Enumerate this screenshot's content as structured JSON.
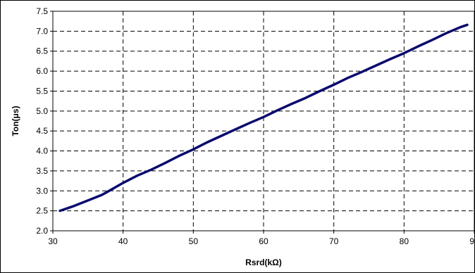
{
  "chart_data": {
    "type": "line",
    "title": "",
    "xlabel": "Rsrd(kΩ)",
    "ylabel": "Ton(μs)",
    "xlim": [
      30,
      90
    ],
    "ylim": [
      2.0,
      7.5
    ],
    "x_ticks": [
      "30",
      "40",
      "50",
      "60",
      "70",
      "80",
      "90"
    ],
    "y_ticks": [
      "2.0",
      "2.5",
      "3.0",
      "3.5",
      "4.0",
      "4.5",
      "5.0",
      "5.5",
      "6.0",
      "6.5",
      "7.0",
      "7.5"
    ],
    "grid": "dashed",
    "legend": "none",
    "series": [
      {
        "color": "#0a0a6e",
        "x": [
          31,
          33,
          35,
          37,
          38,
          40,
          42,
          44,
          46,
          48,
          50,
          52,
          54,
          56,
          58,
          60,
          62,
          64,
          66,
          68,
          70,
          72,
          74,
          76,
          78,
          80,
          82,
          84,
          86,
          88,
          89
        ],
        "y": [
          2.5,
          2.62,
          2.76,
          2.9,
          3.0,
          3.2,
          3.38,
          3.53,
          3.7,
          3.88,
          4.04,
          4.22,
          4.38,
          4.54,
          4.7,
          4.85,
          5.02,
          5.18,
          5.33,
          5.5,
          5.66,
          5.83,
          5.98,
          6.14,
          6.3,
          6.45,
          6.62,
          6.78,
          6.95,
          7.1,
          7.16
        ]
      }
    ]
  }
}
